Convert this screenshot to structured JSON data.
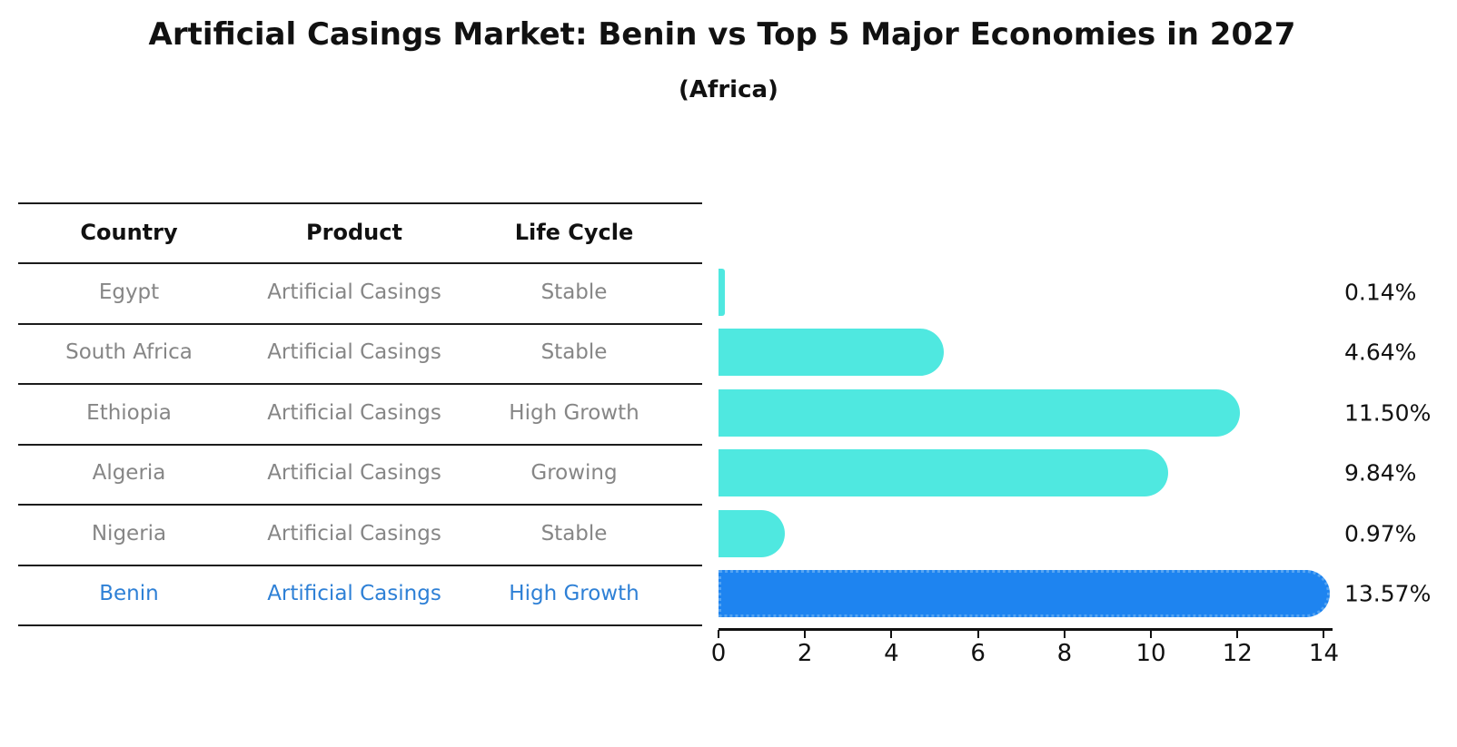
{
  "title": "Artificial Casings Market: Benin vs Top 5 Major Economies in 2027",
  "subtitle": "(Africa)",
  "colors": {
    "bar_default": "#4FE8E0",
    "bar_highlight": "#1E84F0",
    "bar_highlight_border": "#55A4F2",
    "highlight_text": "#2E80D6",
    "row_text": "#868686",
    "heading_text": "#111111",
    "axis": "#111111"
  },
  "table": {
    "headers": [
      "Country",
      "Product",
      "Life Cycle"
    ],
    "rows": [
      {
        "country": "Egypt",
        "product": "Artificial Casings",
        "life_cycle": "Stable",
        "highlight": false
      },
      {
        "country": "South Africa",
        "product": "Artificial Casings",
        "life_cycle": "Stable",
        "highlight": false
      },
      {
        "country": "Ethiopia",
        "product": "Artificial Casings",
        "life_cycle": "High Growth",
        "highlight": false
      },
      {
        "country": "Algeria",
        "product": "Artificial Casings",
        "life_cycle": "Growing",
        "highlight": false
      },
      {
        "country": "Nigeria",
        "product": "Artificial Casings",
        "life_cycle": "Stable",
        "highlight": false
      },
      {
        "country": "Benin",
        "product": "Artificial Casings",
        "life_cycle": "High Growth",
        "highlight": true
      }
    ]
  },
  "chart_data": {
    "type": "bar",
    "orientation": "horizontal",
    "title": "Artificial Casings Market: Benin vs Top 5 Major Economies in 2027 (Africa)",
    "categories": [
      "Egypt",
      "South Africa",
      "Ethiopia",
      "Algeria",
      "Nigeria",
      "Benin"
    ],
    "values": [
      0.14,
      4.64,
      11.5,
      9.84,
      0.97,
      13.57
    ],
    "value_labels": [
      "0.14%",
      "4.64%",
      "11.50%",
      "9.84%",
      "0.97%",
      "13.57%"
    ],
    "highlight_index": 5,
    "x_ticks": [
      0,
      2,
      4,
      6,
      8,
      10,
      12,
      14
    ],
    "xlim": [
      0,
      14.2
    ],
    "xlabel": "",
    "ylabel": "",
    "grid": false,
    "legend": null
  }
}
